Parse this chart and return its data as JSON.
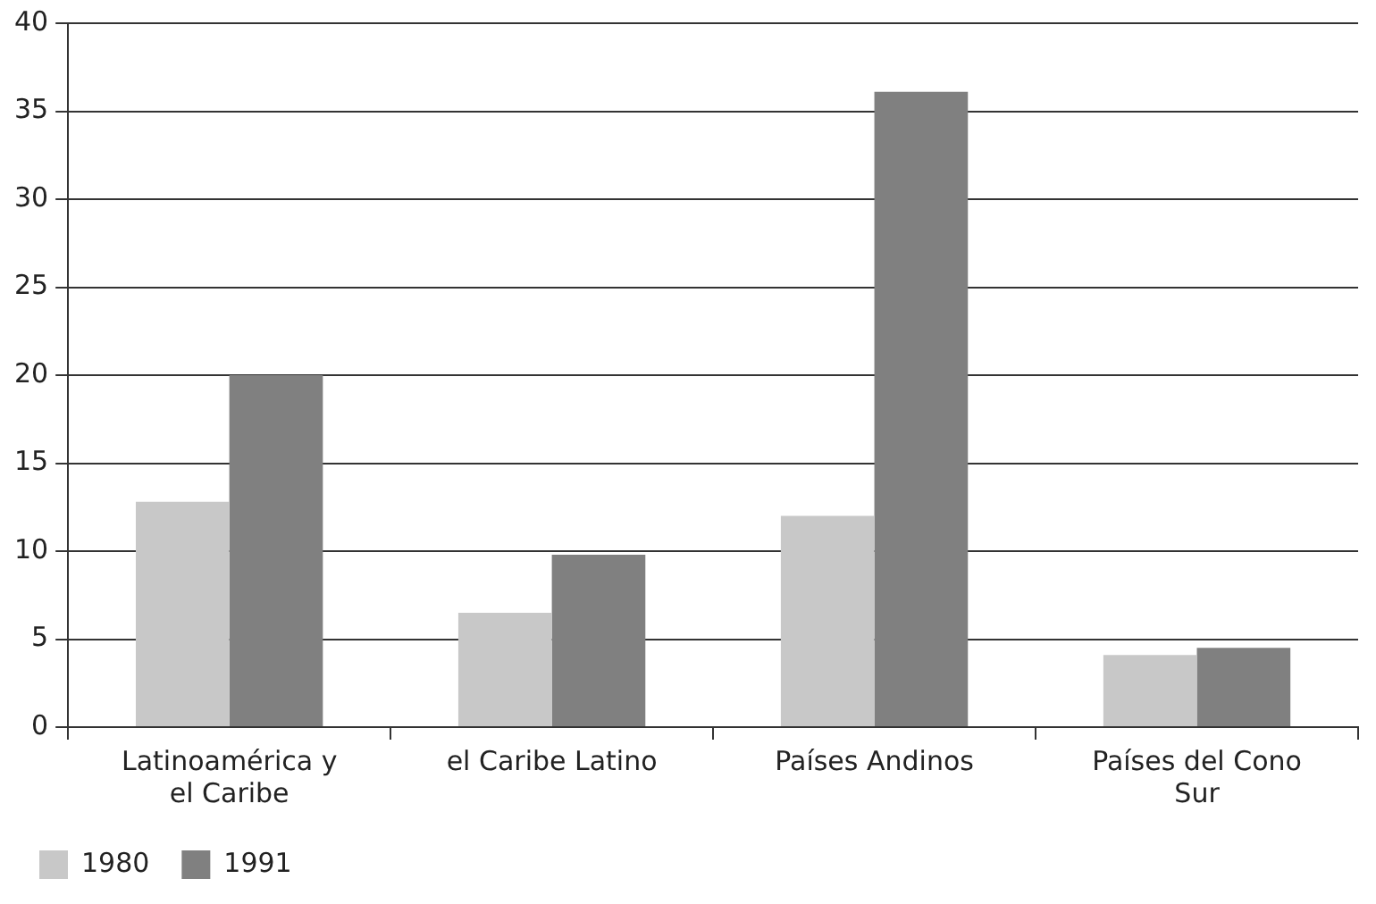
{
  "chart_data": {
    "type": "bar",
    "categories": [
      "Latinoamérica y el Caribe",
      "el Caribe Latino",
      "Países Andinos",
      "Países del Cono Sur"
    ],
    "series": [
      {
        "name": "1980",
        "color": "#c8c8c8",
        "values": [
          12.8,
          6.5,
          12.0,
          4.1
        ]
      },
      {
        "name": "1991",
        "color": "#808080",
        "values": [
          20.0,
          9.8,
          36.1,
          4.5
        ]
      }
    ],
    "ylim": [
      0,
      40
    ],
    "yticks": [
      0,
      5,
      10,
      15,
      20,
      25,
      30,
      35,
      40
    ],
    "grid": "y",
    "legend": "bottom left"
  }
}
